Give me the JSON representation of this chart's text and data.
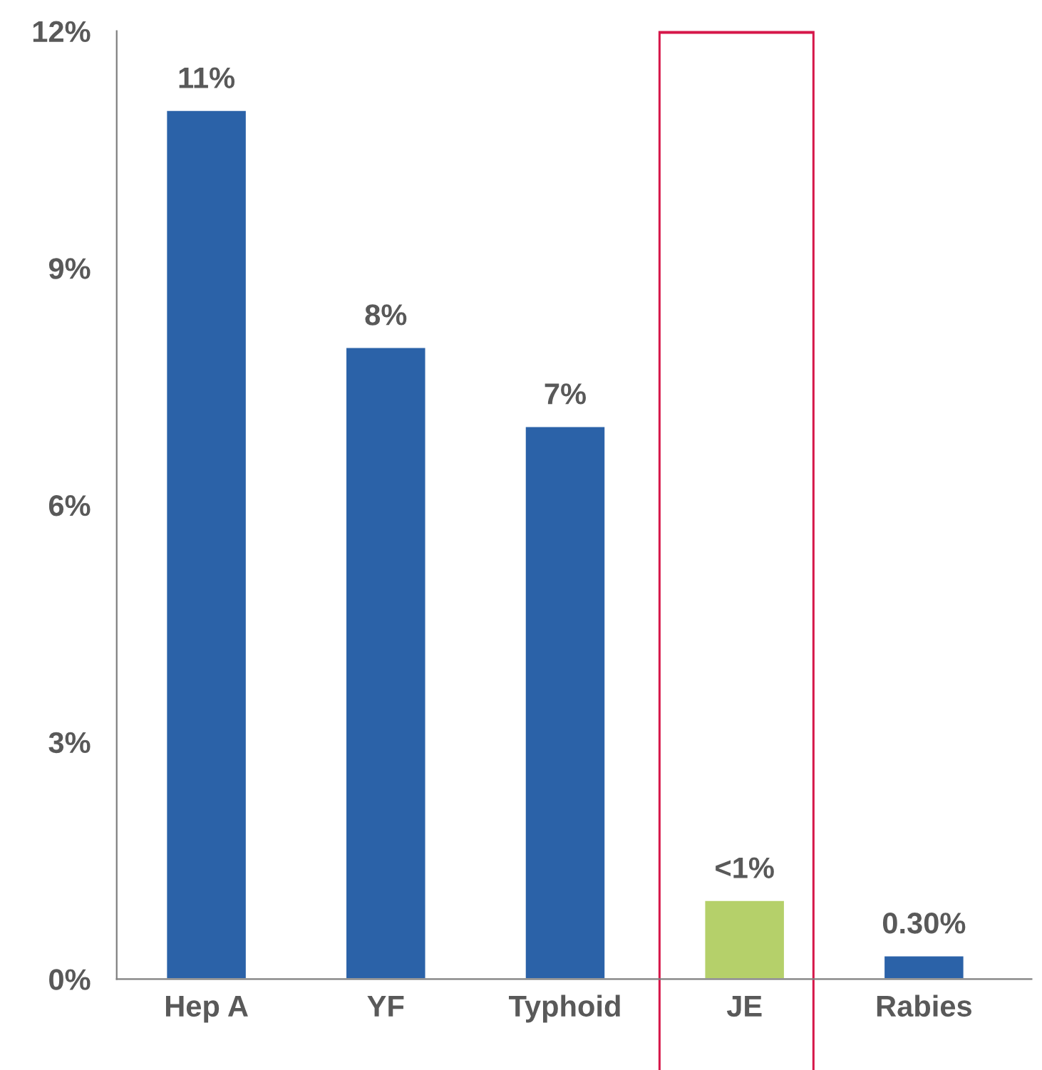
{
  "chart_data": {
    "type": "bar",
    "categories": [
      "Hep A",
      "YF",
      "Typhoid",
      "JE",
      "Rabies"
    ],
    "values": [
      11,
      8,
      7,
      1,
      0.3
    ],
    "colors": [
      "#2b62a8",
      "#2b62a8",
      "#2b62a8",
      "#b5d06a",
      "#2b62a8"
    ],
    "value_labels": [
      "11%",
      "8%",
      "7%",
      "<1%",
      "0.30%"
    ],
    "ylim": [
      0,
      12
    ],
    "yticks": [
      {
        "value": 0,
        "label": "0%"
      },
      {
        "value": 3,
        "label": "3%"
      },
      {
        "value": 6,
        "label": "6%"
      },
      {
        "value": 9,
        "label": "9%"
      },
      {
        "value": 12,
        "label": "12%"
      }
    ],
    "bands": [
      {
        "axis": "x",
        "from": "JE",
        "to": "JE",
        "color": "#d6174a"
      }
    ],
    "grid": false,
    "legend": false
  }
}
